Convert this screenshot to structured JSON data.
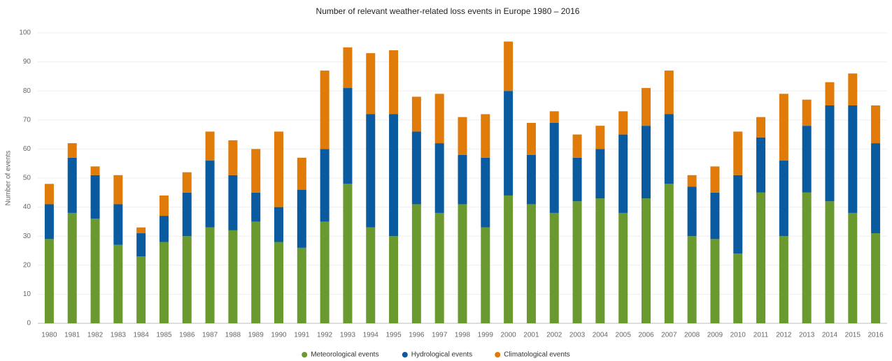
{
  "chart_data": {
    "type": "bar",
    "stacked": true,
    "title": "Number of relevant weather-related loss events in Europe 1980 – 2016",
    "y_label": "Number of events",
    "categories": [
      "1980",
      "1981",
      "1982",
      "1983",
      "1984",
      "1985",
      "1986",
      "1987",
      "1988",
      "1989",
      "1990",
      "1991",
      "1992",
      "1993",
      "1994",
      "1995",
      "1996",
      "1997",
      "1998",
      "1999",
      "2000",
      "2001",
      "2002",
      "2003",
      "2004",
      "2005",
      "2006",
      "2007",
      "2008",
      "2009",
      "2010",
      "2011",
      "2012",
      "2013",
      "2014",
      "2015",
      "2016"
    ],
    "series": [
      {
        "name": "Meteorological events",
        "color": "#6a9a2f",
        "values": [
          29,
          38,
          36,
          27,
          23,
          28,
          30,
          33,
          32,
          35,
          28,
          26,
          35,
          48,
          33,
          30,
          41,
          38,
          41,
          33,
          44,
          41,
          38,
          42,
          43,
          38,
          43,
          48,
          30,
          29,
          24,
          45,
          30,
          45,
          42,
          38,
          31
        ]
      },
      {
        "name": "Hydrological events",
        "color": "#0a5aa0",
        "values": [
          12,
          19,
          15,
          14,
          8,
          9,
          15,
          23,
          19,
          10,
          12,
          20,
          25,
          33,
          39,
          42,
          25,
          24,
          17,
          24,
          36,
          17,
          31,
          15,
          17,
          27,
          25,
          24,
          17,
          16,
          27,
          19,
          26,
          23,
          33,
          37,
          31
        ]
      },
      {
        "name": "Climatological events",
        "color": "#e07b0a",
        "values": [
          7,
          5,
          3,
          10,
          2,
          7,
          7,
          10,
          12,
          15,
          26,
          11,
          27,
          14,
          21,
          22,
          12,
          17,
          13,
          15,
          17,
          11,
          4,
          8,
          8,
          8,
          13,
          15,
          4,
          9,
          15,
          7,
          23,
          9,
          8,
          11,
          13
        ]
      }
    ],
    "ylim": [
      0,
      100
    ],
    "yticks": [
      0,
      10,
      20,
      30,
      40,
      50,
      60,
      70,
      80,
      90,
      100
    ],
    "grid": true,
    "legend": "bottom"
  }
}
